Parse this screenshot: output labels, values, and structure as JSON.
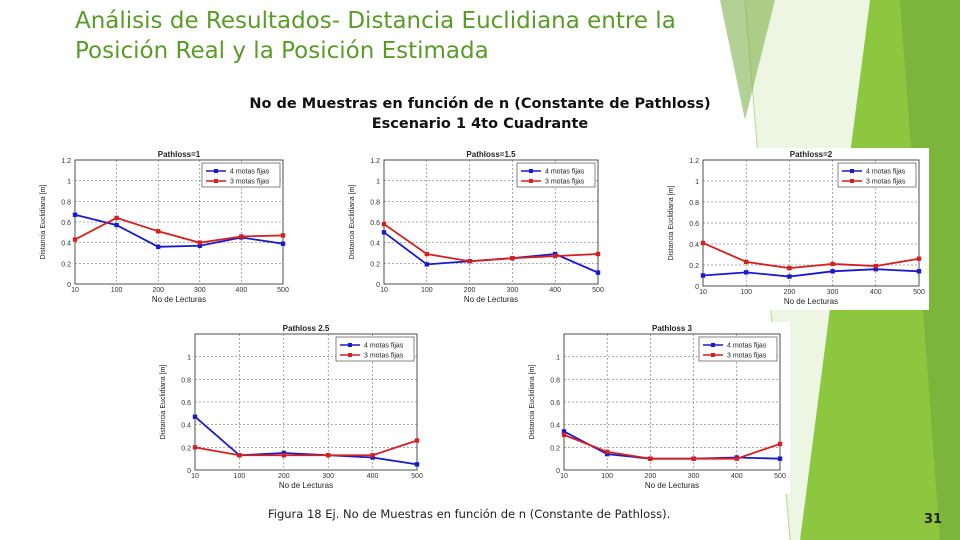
{
  "slide": {
    "title_line1": "Análisis de Resultados- Distancia Euclidiana entre la",
    "title_line2": "Posición Real y la Posición Estimada",
    "subtitle_line1": "No de Muestras en función de n (Constante de Pathloss)",
    "subtitle_line2": "Escenario 1 4to Cuadrante",
    "caption": "Figura 18 Ej. No de Muestras en función de n (Constante de Pathloss).",
    "page_number": "31",
    "colors": {
      "title": "#5a9b28",
      "accent_green": "#8dc63f",
      "series_blue": "#1a1acc",
      "series_red": "#d42020"
    }
  },
  "chart_data": [
    {
      "type": "line",
      "title": "Pathloss=1",
      "xlabel": "No de Lecturas",
      "ylabel": "Distancia Euclidiana [m]",
      "categories": [
        "10",
        "100",
        "200",
        "300",
        "400",
        "500"
      ],
      "ylim": [
        0,
        1.2
      ],
      "yticks": [
        "0",
        "0.2",
        "0.4",
        "0.6",
        "0.8",
        "1",
        "1.2"
      ],
      "legend": "top-right",
      "series": [
        {
          "name": "4 motas fijas",
          "color": "#1a1acc",
          "values": [
            0.67,
            0.57,
            0.36,
            0.37,
            0.45,
            0.39
          ]
        },
        {
          "name": "3 motas fijas",
          "color": "#d42020",
          "values": [
            0.43,
            0.64,
            0.51,
            0.4,
            0.46,
            0.47
          ]
        }
      ]
    },
    {
      "type": "line",
      "title": "Pathloss=1.5",
      "xlabel": "No de Lecturas",
      "ylabel": "Distancia Euclidiana [m]",
      "categories": [
        "10",
        "100",
        "200",
        "300",
        "400",
        "500"
      ],
      "ylim": [
        0,
        1.2
      ],
      "yticks": [
        "0",
        "0.2",
        "0.4",
        "0.6",
        "0.8",
        "1",
        "1.2"
      ],
      "legend": "top-right",
      "series": [
        {
          "name": "4 motas fijas",
          "color": "#1a1acc",
          "values": [
            0.5,
            0.19,
            0.22,
            0.25,
            0.29,
            0.11
          ]
        },
        {
          "name": "3 motas fijas",
          "color": "#d42020",
          "values": [
            0.58,
            0.29,
            0.22,
            0.25,
            0.27,
            0.29
          ]
        }
      ]
    },
    {
      "type": "line",
      "title": "Pathloss=2",
      "xlabel": "No de Lecturas",
      "ylabel": "Distancia Euclidiana [m]",
      "categories": [
        "10",
        "100",
        "200",
        "300",
        "400",
        "500"
      ],
      "ylim": [
        0,
        1.2
      ],
      "yticks": [
        "0",
        "0.2",
        "0.4",
        "0.6",
        "0.8",
        "1",
        "1.2"
      ],
      "legend": "top-right",
      "series": [
        {
          "name": "4 motas fijas",
          "color": "#1a1acc",
          "values": [
            0.1,
            0.13,
            0.09,
            0.14,
            0.16,
            0.14
          ]
        },
        {
          "name": "3 motas fijas",
          "color": "#d42020",
          "values": [
            0.41,
            0.23,
            0.17,
            0.21,
            0.19,
            0.26
          ]
        }
      ]
    },
    {
      "type": "line",
      "title": "Pathloss 2.5",
      "xlabel": "No de Lecturas",
      "ylabel": "Distancia Euclidiana [m]",
      "categories": [
        "10",
        "100",
        "200",
        "300",
        "400",
        "500"
      ],
      "ylim": [
        0,
        1.2
      ],
      "yticks": [
        "0",
        "0.2",
        "0.4",
        "0.6",
        "0.8",
        "1"
      ],
      "legend": "top-right",
      "series": [
        {
          "name": "4 motas fijas",
          "color": "#1a1acc",
          "values": [
            0.47,
            0.13,
            0.15,
            0.13,
            0.11,
            0.05
          ]
        },
        {
          "name": "3 motas fijas",
          "color": "#d42020",
          "values": [
            0.2,
            0.13,
            0.13,
            0.13,
            0.13,
            0.26
          ]
        }
      ]
    },
    {
      "type": "line",
      "title": "Pathloss 3",
      "xlabel": "No de Lecturas",
      "ylabel": "Distancia Euclidiana [m]",
      "categories": [
        "10",
        "100",
        "200",
        "300",
        "400",
        "500"
      ],
      "ylim": [
        0,
        1.2
      ],
      "yticks": [
        "0",
        "0.2",
        "0.4",
        "0.6",
        "0.8",
        "1"
      ],
      "legend": "top-right",
      "series": [
        {
          "name": "4 motas fijas",
          "color": "#1a1acc",
          "values": [
            0.34,
            0.14,
            0.1,
            0.1,
            0.11,
            0.1
          ]
        },
        {
          "name": "3 motas fijas",
          "color": "#d42020",
          "values": [
            0.31,
            0.16,
            0.1,
            0.1,
            0.1,
            0.23
          ]
        }
      ]
    }
  ]
}
